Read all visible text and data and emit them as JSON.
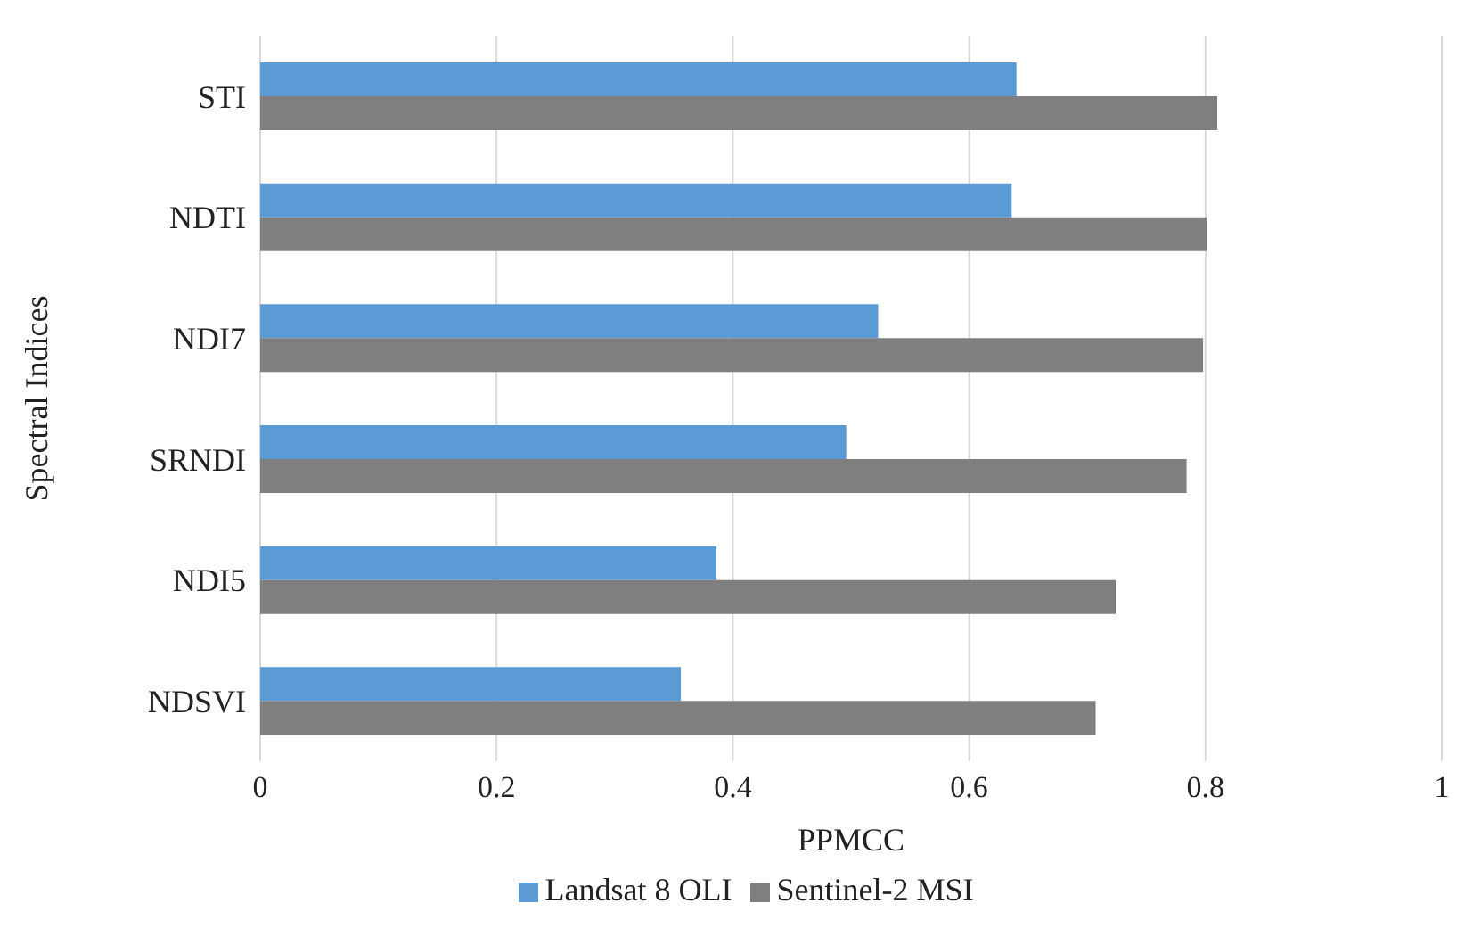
{
  "chart_data": {
    "type": "bar",
    "orientation": "horizontal",
    "xlabel": "PPMCC",
    "ylabel": "Spectral Indices",
    "categories": [
      "STI",
      "NDTI",
      "NDI7",
      "SRNDI",
      "NDI5",
      "NDSVI"
    ],
    "series": [
      {
        "name": "Landsat 8 OLI",
        "color": "#5b9bd5",
        "values": [
          0.64,
          0.636,
          0.523,
          0.496,
          0.386,
          0.356
        ]
      },
      {
        "name": "Sentinel-2 MSI",
        "color": "#7f7f7f",
        "values": [
          0.81,
          0.801,
          0.798,
          0.784,
          0.724,
          0.707
        ]
      }
    ],
    "xlim": [
      0,
      1
    ],
    "xticks": [
      0,
      0.2,
      0.4,
      0.6,
      0.8,
      1
    ],
    "grid": "x",
    "legend": "bottom"
  }
}
